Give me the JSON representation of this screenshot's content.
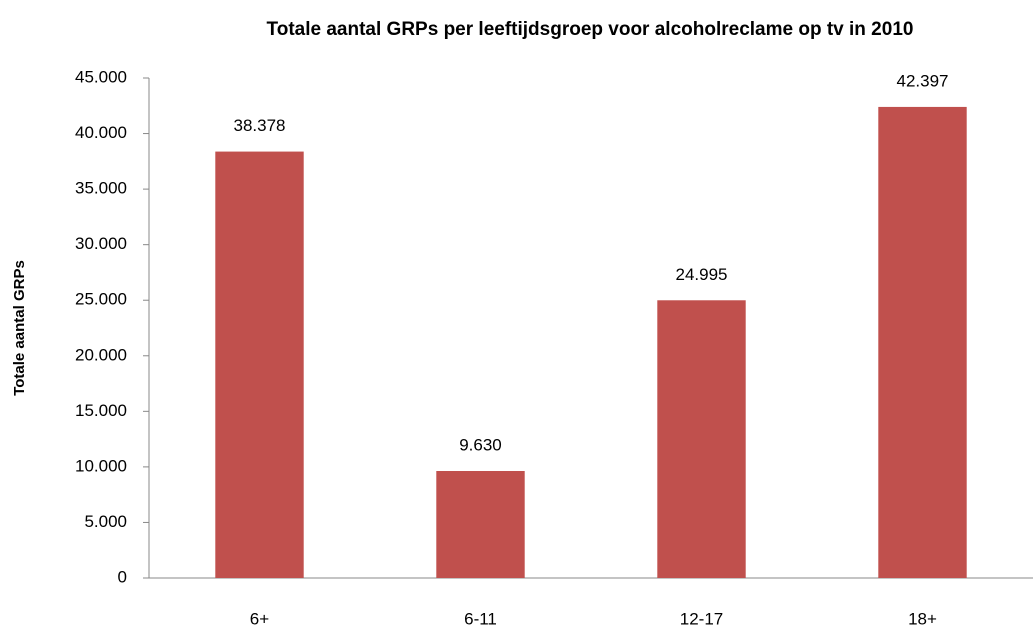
{
  "chart_data": {
    "type": "bar",
    "title": "Totale aantal GRPs per leeftijdsgroep voor alcoholreclame op tv in 2010",
    "y_label": "Totale aantal GRPs",
    "categories": [
      "6+",
      "6-11",
      "12-17",
      "18+"
    ],
    "values": [
      38378,
      9630,
      24995,
      42397
    ],
    "value_labels": [
      "38.378",
      "9.630",
      "24.995",
      "42.397"
    ],
    "color": "#c0504d",
    "ylim": [
      0,
      45000
    ],
    "yticks": [
      0,
      {
        "value": 5000,
        "label": "5.000"
      },
      {
        "value": 10000,
        "label": "10.000"
      },
      {
        "value": 15000,
        "label": "15.000"
      },
      {
        "value": 20000,
        "label": "20.000"
      },
      {
        "value": 25000,
        "label": "25.000"
      },
      {
        "value": 30000,
        "label": "30.000"
      },
      {
        "value": 35000,
        "label": "35.000"
      },
      {
        "value": 40000,
        "label": "40.000"
      },
      {
        "value": 45000,
        "label": "45.000"
      }
    ],
    "grid": false
  }
}
